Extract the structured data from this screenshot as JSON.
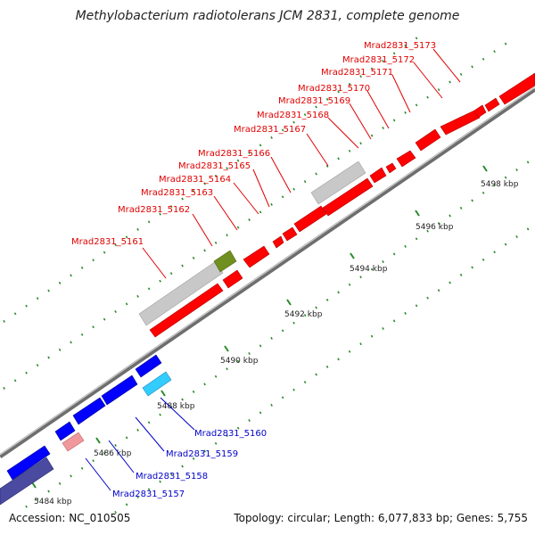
{
  "title": "Methylobacterium radiotolerans JCM 2831, complete genome",
  "accession_text": "Accession: NC_010505",
  "topology_text": "Topology: circular; Length: 6,077,833 bp; Genes: 5,755",
  "colors": {
    "forward_label": "#e00000",
    "reverse_label": "#0000c8",
    "backbone": "#888888",
    "dots": "#2a8a2a"
  },
  "ruler_ticks": [
    {
      "label": "5484 kbp"
    },
    {
      "label": "5486 kbp"
    },
    {
      "label": "5488 kbp"
    },
    {
      "label": "5490 kbp"
    },
    {
      "label": "5492 kbp"
    },
    {
      "label": "5494 kbp"
    },
    {
      "label": "5496 kbp"
    },
    {
      "label": "5498 kbp"
    }
  ],
  "forward_genes": [
    {
      "label": "Mrad2831_5161"
    },
    {
      "label": "Mrad2831_5162"
    },
    {
      "label": "Mrad2831_5163"
    },
    {
      "label": "Mrad2831_5164"
    },
    {
      "label": "Mrad2831_5165"
    },
    {
      "label": "Mrad2831_5166"
    },
    {
      "label": "Mrad2831_5167"
    },
    {
      "label": "Mrad2831_5168"
    },
    {
      "label": "Mrad2831_5169"
    },
    {
      "label": "Mrad2831_5170"
    },
    {
      "label": "Mrad2831_5171"
    },
    {
      "label": "Mrad2831_5172"
    },
    {
      "label": "Mrad2831_5173"
    }
  ],
  "reverse_genes": [
    {
      "label": "Mrad2831_5157"
    },
    {
      "label": "Mrad2831_5158"
    },
    {
      "label": "Mrad2831_5159"
    },
    {
      "label": "Mrad2831_5160"
    }
  ]
}
